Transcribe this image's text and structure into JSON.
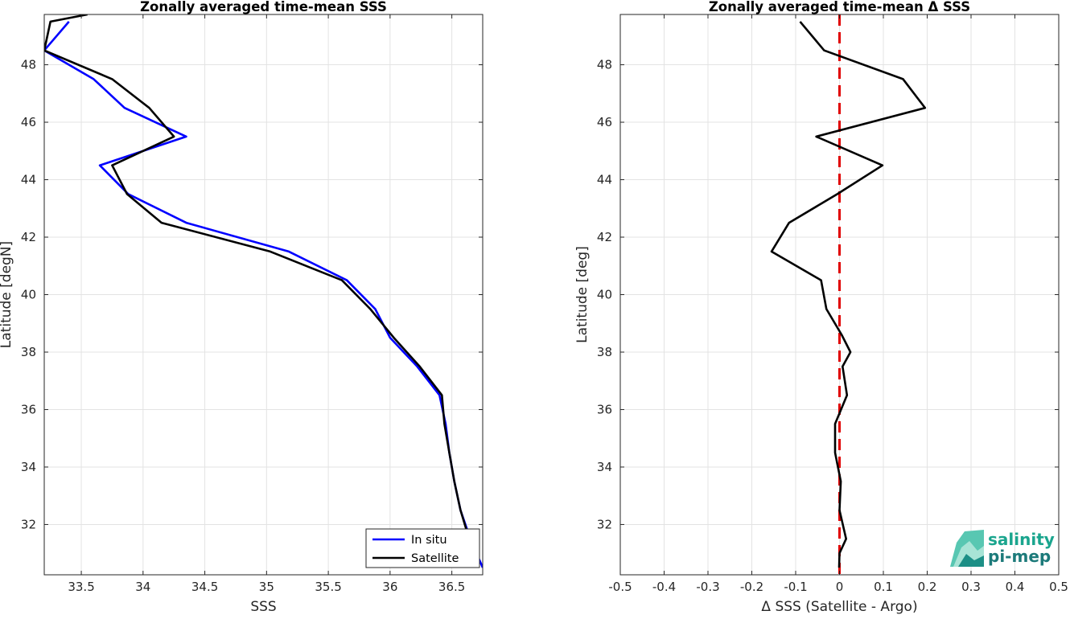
{
  "chart_data": [
    {
      "type": "line",
      "title": "Zonally averaged time-mean SSS",
      "xlabel": "SSS",
      "ylabel": "Latitude [degN]",
      "xlim": [
        33.2,
        36.75
      ],
      "ylim": [
        30.25,
        49.75
      ],
      "xticks": [
        33.5,
        34,
        34.5,
        35,
        35.5,
        36,
        36.5
      ],
      "xtick_labels": [
        "33.5",
        "34",
        "34.5",
        "35",
        "35.5",
        "36",
        "36.5"
      ],
      "yticks": [
        32,
        34,
        36,
        38,
        40,
        42,
        44,
        46,
        48
      ],
      "ytick_labels": [
        "32",
        "34",
        "36",
        "38",
        "40",
        "42",
        "44",
        "46",
        "48"
      ],
      "grid": true,
      "legend": "bottom-right",
      "series": [
        {
          "name": "In situ",
          "color": "#0000ff",
          "points": [
            [
              36.75,
              30.5
            ],
            [
              36.65,
              31.5
            ],
            [
              36.57,
              32.5
            ],
            [
              36.52,
              33.5
            ],
            [
              36.48,
              34.5
            ],
            [
              36.45,
              35.5
            ],
            [
              36.4,
              36.5
            ],
            [
              36.22,
              37.5
            ],
            [
              36.0,
              38.5
            ],
            [
              35.88,
              39.5
            ],
            [
              35.65,
              40.5
            ],
            [
              35.18,
              41.5
            ],
            [
              34.35,
              42.5
            ],
            [
              33.88,
              43.5
            ],
            [
              33.65,
              44.5
            ],
            [
              34.35,
              45.5
            ],
            [
              33.85,
              46.5
            ],
            [
              33.6,
              47.5
            ],
            [
              33.2,
              48.5
            ],
            [
              33.4,
              49.5
            ]
          ]
        },
        {
          "name": "Satellite",
          "color": "#000000",
          "points": [
            [
              36.72,
              30.5
            ],
            [
              36.64,
              31.5
            ],
            [
              36.57,
              32.5
            ],
            [
              36.52,
              33.5
            ],
            [
              36.48,
              34.5
            ],
            [
              36.44,
              35.5
            ],
            [
              36.42,
              36.5
            ],
            [
              36.24,
              37.5
            ],
            [
              36.03,
              38.5
            ],
            [
              35.84,
              39.5
            ],
            [
              35.61,
              40.5
            ],
            [
              35.03,
              41.5
            ],
            [
              34.15,
              42.5
            ],
            [
              33.87,
              43.5
            ],
            [
              33.75,
              44.5
            ],
            [
              34.25,
              45.5
            ],
            [
              34.05,
              46.5
            ],
            [
              33.75,
              47.5
            ],
            [
              33.2,
              48.5
            ],
            [
              33.25,
              49.5
            ],
            [
              33.55,
              49.75
            ]
          ]
        }
      ]
    },
    {
      "type": "line",
      "title": "Zonally averaged time-mean Δ SSS",
      "xlabel": "Δ SSS (Satellite - Argo)",
      "ylabel": "Latitude [deg]",
      "xlim": [
        -0.5,
        0.5
      ],
      "ylim": [
        30.25,
        49.75
      ],
      "xticks": [
        -0.5,
        -0.4,
        -0.3,
        -0.2,
        -0.1,
        0,
        0.1,
        0.2,
        0.3,
        0.4,
        0.5
      ],
      "xtick_labels": [
        "-0.5",
        "-0.4",
        "-0.3",
        "-0.2",
        "-0.1",
        "0",
        "0.1",
        "0.2",
        "0.3",
        "0.4",
        "0.5"
      ],
      "yticks": [
        32,
        34,
        36,
        38,
        40,
        42,
        44,
        46,
        48
      ],
      "ytick_labels": [
        "32",
        "34",
        "36",
        "38",
        "40",
        "42",
        "44",
        "46",
        "48"
      ],
      "grid": true,
      "reference_line": {
        "x": 0,
        "color": "#e00000",
        "style": "dashed"
      },
      "series": [
        {
          "color": "#000000",
          "points": [
            [
              -0.001,
              30.5
            ],
            [
              0.0,
              31.0
            ],
            [
              0.015,
              31.5
            ],
            [
              0.0,
              32.5
            ],
            [
              0.003,
              33.5
            ],
            [
              -0.01,
              34.5
            ],
            [
              -0.01,
              35.5
            ],
            [
              0.017,
              36.5
            ],
            [
              0.007,
              37.5
            ],
            [
              0.025,
              38.0
            ],
            [
              0.005,
              38.6
            ],
            [
              -0.03,
              39.5
            ],
            [
              -0.042,
              40.5
            ],
            [
              -0.155,
              41.5
            ],
            [
              -0.115,
              42.5
            ],
            [
              -0.005,
              43.5
            ],
            [
              0.098,
              44.5
            ],
            [
              -0.053,
              45.5
            ],
            [
              0.195,
              46.5
            ],
            [
              0.145,
              47.5
            ],
            [
              -0.035,
              48.5
            ],
            [
              -0.09,
              49.5
            ]
          ]
        }
      ]
    }
  ],
  "logo": {
    "line1": "salinity",
    "line2": "pi-mep",
    "color": "#1aa58e",
    "color2": "#1c7a7a"
  }
}
